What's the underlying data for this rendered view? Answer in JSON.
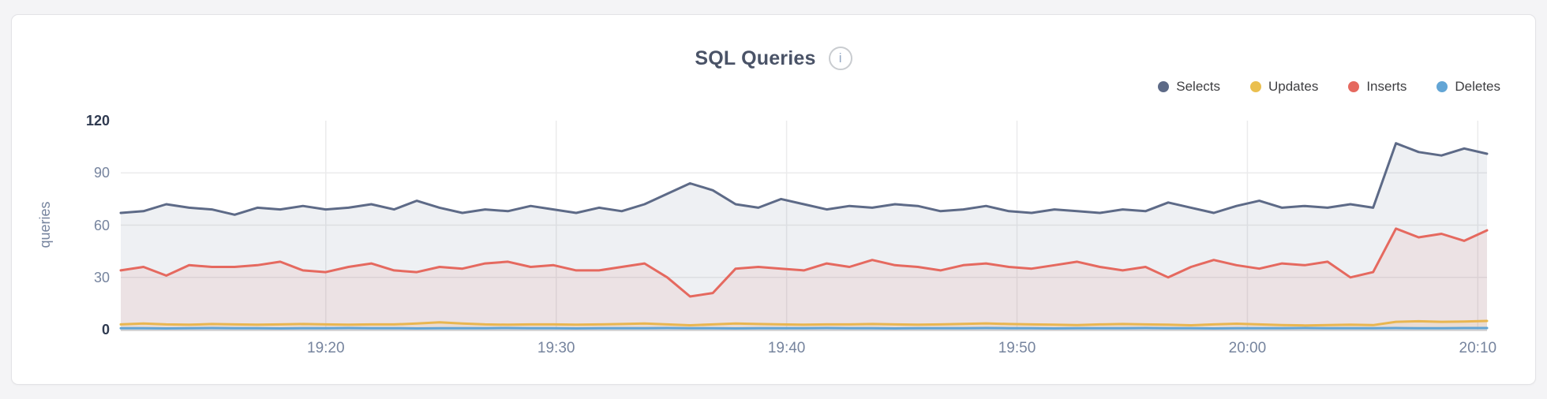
{
  "card": {
    "title": "SQL Queries",
    "info_glyph": "i"
  },
  "chart_data": {
    "type": "area",
    "title": "SQL Queries",
    "xlabel": "",
    "ylabel": "queries",
    "ylim": [
      0,
      120
    ],
    "y_ticks": [
      0,
      30,
      60,
      90,
      120
    ],
    "y_gridlines": [
      30,
      60,
      90
    ],
    "grid": true,
    "legend_position": "top-right",
    "x_unit": "minutes after 19:00",
    "x_domain": [
      11.1,
      70.4
    ],
    "x_ticks": [
      {
        "t": 20,
        "label": "19:20"
      },
      {
        "t": 30,
        "label": "19:30"
      },
      {
        "t": 40,
        "label": "19:40"
      },
      {
        "t": 50,
        "label": "19:50"
      },
      {
        "t": 60,
        "label": "20:00"
      },
      {
        "t": 70,
        "label": "20:10"
      }
    ],
    "series": [
      {
        "name": "Selects",
        "color": "#5d6a87",
        "fill_opacity": 0.1,
        "values": [
          67,
          68,
          72,
          70,
          69,
          66,
          70,
          69,
          71,
          69,
          70,
          72,
          69,
          74,
          70,
          67,
          69,
          68,
          71,
          69,
          67,
          70,
          68,
          72,
          78,
          84,
          80,
          72,
          70,
          75,
          72,
          69,
          71,
          70,
          72,
          71,
          68,
          69,
          71,
          68,
          67,
          69,
          68,
          67,
          69,
          68,
          73,
          70,
          67,
          71,
          74,
          70,
          71,
          70,
          72,
          70,
          107,
          102,
          100,
          104,
          101
        ]
      },
      {
        "name": "Updates",
        "color": "#eabf4f",
        "fill_opacity": 0.12,
        "values": [
          3,
          3.5,
          3,
          2.8,
          3.2,
          3,
          2.8,
          3,
          3.2,
          3,
          2.8,
          3,
          3,
          3.5,
          4.2,
          3.5,
          3,
          2.8,
          3,
          3,
          2.8,
          3,
          3.2,
          3.5,
          3,
          2.5,
          3,
          3.5,
          3.2,
          3,
          2.8,
          3,
          3,
          3.2,
          3,
          2.8,
          3,
          3.3,
          3.6,
          3.2,
          3,
          2.8,
          2.6,
          3,
          3.2,
          3,
          2.8,
          2.5,
          3,
          3.4,
          3,
          2.6,
          2.4,
          2.6,
          2.8,
          2.6,
          4.5,
          4.8,
          4.5,
          4.6,
          5
        ]
      },
      {
        "name": "Inserts",
        "color": "#e5695f",
        "fill_opacity": 0.1,
        "values": [
          34,
          36,
          31,
          37,
          36,
          36,
          37,
          39,
          34,
          33,
          36,
          38,
          34,
          33,
          36,
          35,
          38,
          39,
          36,
          37,
          34,
          34,
          36,
          38,
          30,
          19,
          21,
          35,
          36,
          35,
          34,
          38,
          36,
          40,
          37,
          36,
          34,
          37,
          38,
          36,
          35,
          37,
          39,
          36,
          34,
          36,
          30,
          36,
          40,
          37,
          35,
          38,
          37,
          39,
          30,
          33,
          58,
          53,
          55,
          51,
          57
        ]
      },
      {
        "name": "Deletes",
        "color": "#63a5d5",
        "fill_opacity": 0.15,
        "values": [
          0.8,
          0.8,
          0.7,
          0.8,
          0.9,
          0.8,
          0.8,
          0.7,
          0.8,
          0.8,
          0.9,
          0.8,
          0.8,
          0.7,
          0.8,
          0.8,
          0.8,
          0.9,
          0.8,
          0.8,
          0.7,
          0.8,
          0.8,
          0.8,
          0.9,
          0.8,
          0.8,
          0.7,
          0.8,
          0.8,
          0.8,
          0.9,
          0.8,
          0.8,
          0.7,
          0.8,
          0.8,
          0.8,
          0.9,
          0.8,
          0.8,
          0.7,
          0.8,
          0.8,
          0.8,
          0.9,
          0.8,
          0.8,
          0.7,
          0.8,
          0.8,
          0.8,
          0.9,
          0.8,
          0.8,
          0.8,
          0.9,
          0.8,
          0.8,
          0.9,
          0.9
        ]
      }
    ]
  },
  "legend_order": [
    "Selects",
    "Updates",
    "Inserts",
    "Deletes"
  ]
}
